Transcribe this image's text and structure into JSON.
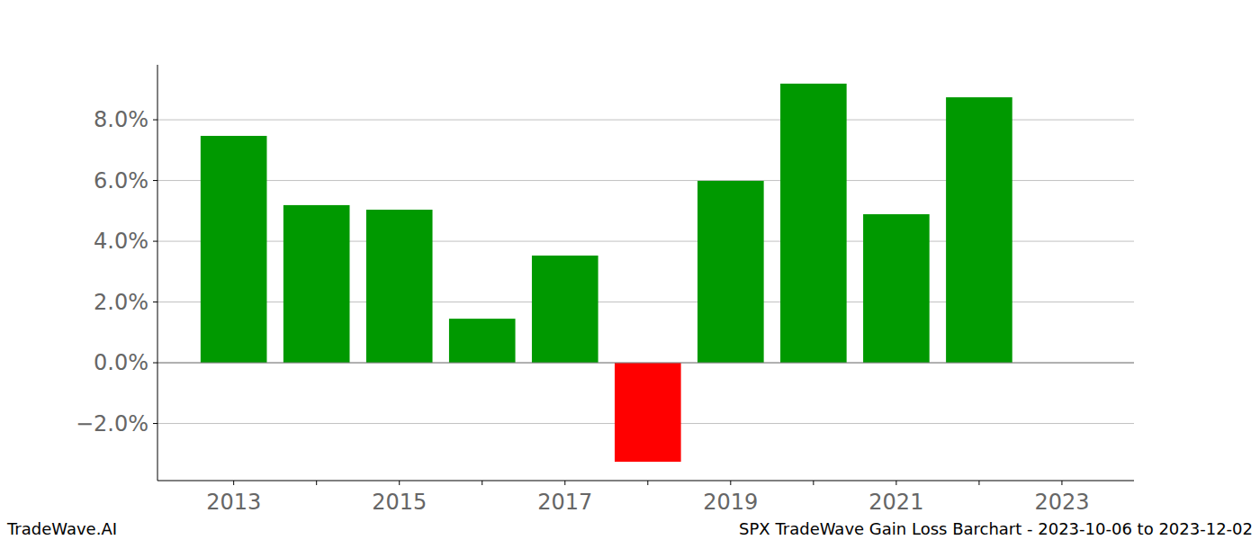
{
  "chart_data": {
    "type": "bar",
    "title": "SPX TradeWave Gain Loss Barchart - 2023-10-06 to 2023-12-02",
    "annotations": [
      "TradeWave.AI"
    ],
    "x": [
      2013,
      2014,
      2015,
      2016,
      2017,
      2018,
      2019,
      2020,
      2021,
      2022
    ],
    "values": [
      7.47,
      5.19,
      5.04,
      1.45,
      3.53,
      -3.26,
      5.99,
      9.19,
      4.89,
      8.74
    ],
    "colors": [
      "#009900",
      "#009900",
      "#009900",
      "#009900",
      "#009900",
      "#ff0000",
      "#009900",
      "#009900",
      "#009900",
      "#009900"
    ],
    "xlim": [
      2012.08,
      2023.87
    ],
    "xticks": [
      2013,
      2015,
      2017,
      2019,
      2021,
      2023
    ],
    "ylim": [
      -3.88,
      9.81
    ],
    "yticks": [
      {
        "value": -2,
        "label": "−2.0%"
      },
      {
        "value": 0,
        "label": "0.0%"
      },
      {
        "value": 2,
        "label": "2.0%"
      },
      {
        "value": 4,
        "label": "4.0%"
      },
      {
        "value": 6,
        "label": "6.0%"
      },
      {
        "value": 8,
        "label": "8.0%"
      }
    ],
    "grid": true
  }
}
